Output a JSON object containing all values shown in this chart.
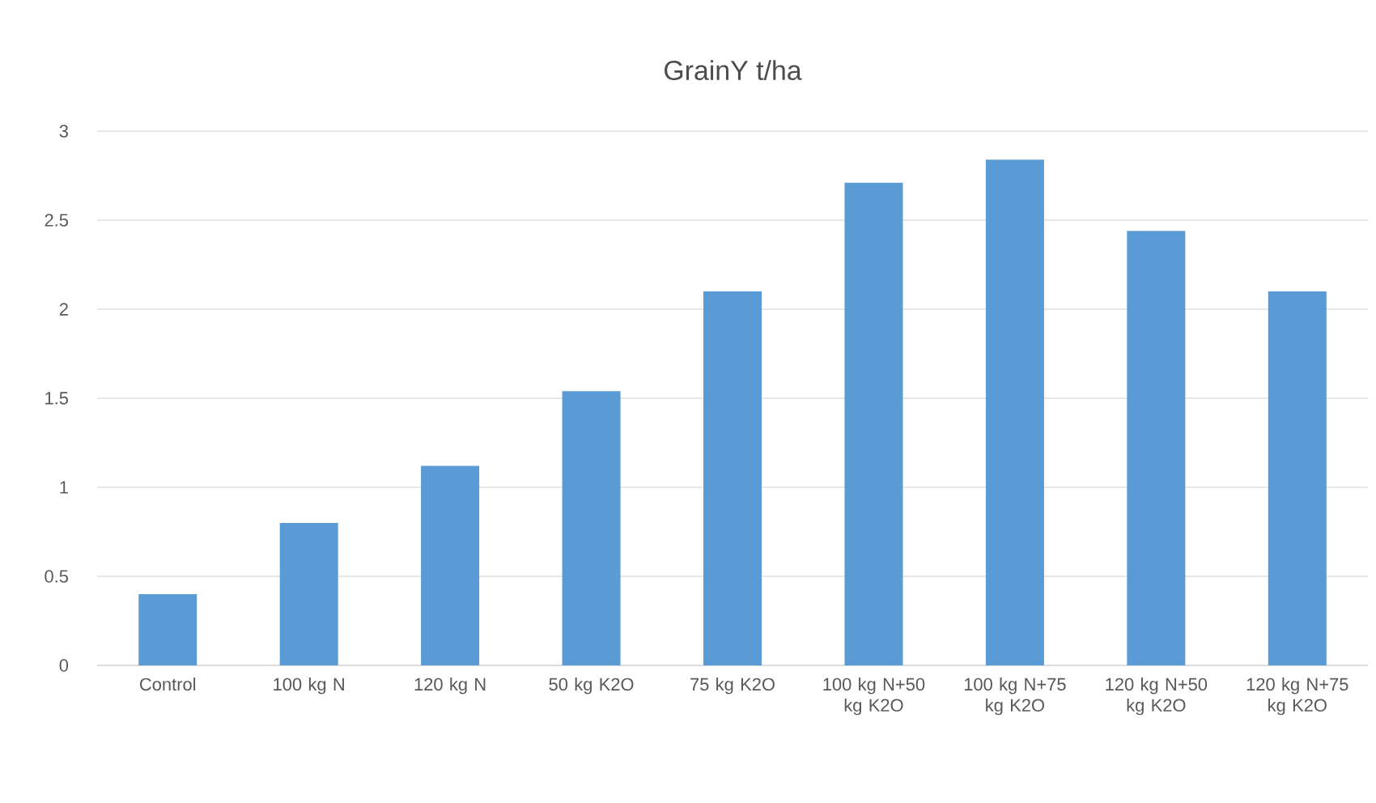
{
  "chart_data": {
    "type": "bar",
    "title": "GrainY t/ha",
    "categories": [
      "Control",
      "100 kg N",
      "120 kg N",
      "50 kg K2O",
      "75 kg K2O",
      "100 kg N+50 kg K2O",
      "100 kg N+75 kg K2O",
      "120 kg N+50 kg K2O",
      "120 kg N+75 kg K2O"
    ],
    "values": [
      0.4,
      0.8,
      1.12,
      1.54,
      2.1,
      2.71,
      2.84,
      2.44,
      2.1
    ],
    "color": "#5b9bd5",
    "ylim": [
      0,
      3
    ],
    "yticks": [
      0,
      0.5,
      1,
      1.5,
      2,
      2.5,
      3
    ],
    "grid": "y"
  }
}
